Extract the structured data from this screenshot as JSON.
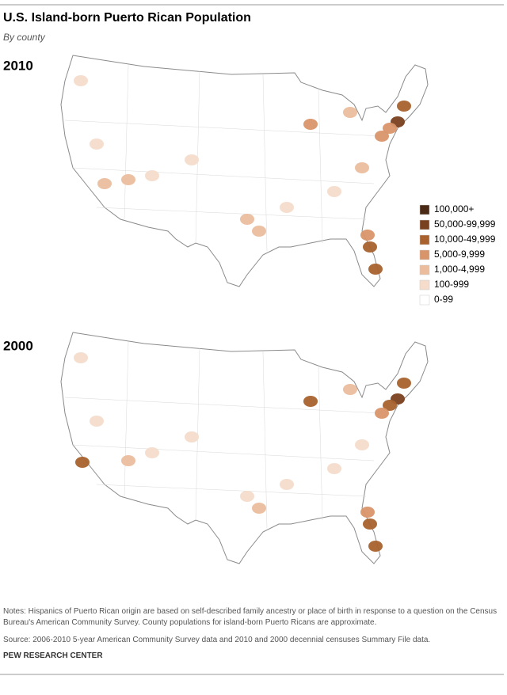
{
  "header": {
    "title": "U.S. Island-born Puerto Rican Population",
    "subtitle": "By county"
  },
  "maps": [
    {
      "label": "2010"
    },
    {
      "label": "2000"
    }
  ],
  "legend": [
    {
      "label": "100,000+",
      "color": "#4a2a14"
    },
    {
      "label": "50,000-99,999",
      "color": "#7a4120"
    },
    {
      "label": "10,000-49,999",
      "color": "#a9622e"
    },
    {
      "label": "5,000-9,999",
      "color": "#d9956a"
    },
    {
      "label": "1,000-4,999",
      "color": "#ebbd9d"
    },
    {
      "label": "100-999",
      "color": "#f5dccb"
    },
    {
      "label": "0-99",
      "color": "#ffffff"
    }
  ],
  "notes": "Notes: Hispanics of Puerto Rican origin are based on self-described family ancestry or place of birth in response to a question on the Census Bureau's American Community Survey. County populations for island-born Puerto Ricans are approximate.",
  "source": "Source: 2006-2010 5-year American Community Survey data and 2010 and 2000 decennial censuses Summary File data.",
  "footer": "PEW RESEARCH CENTER"
}
